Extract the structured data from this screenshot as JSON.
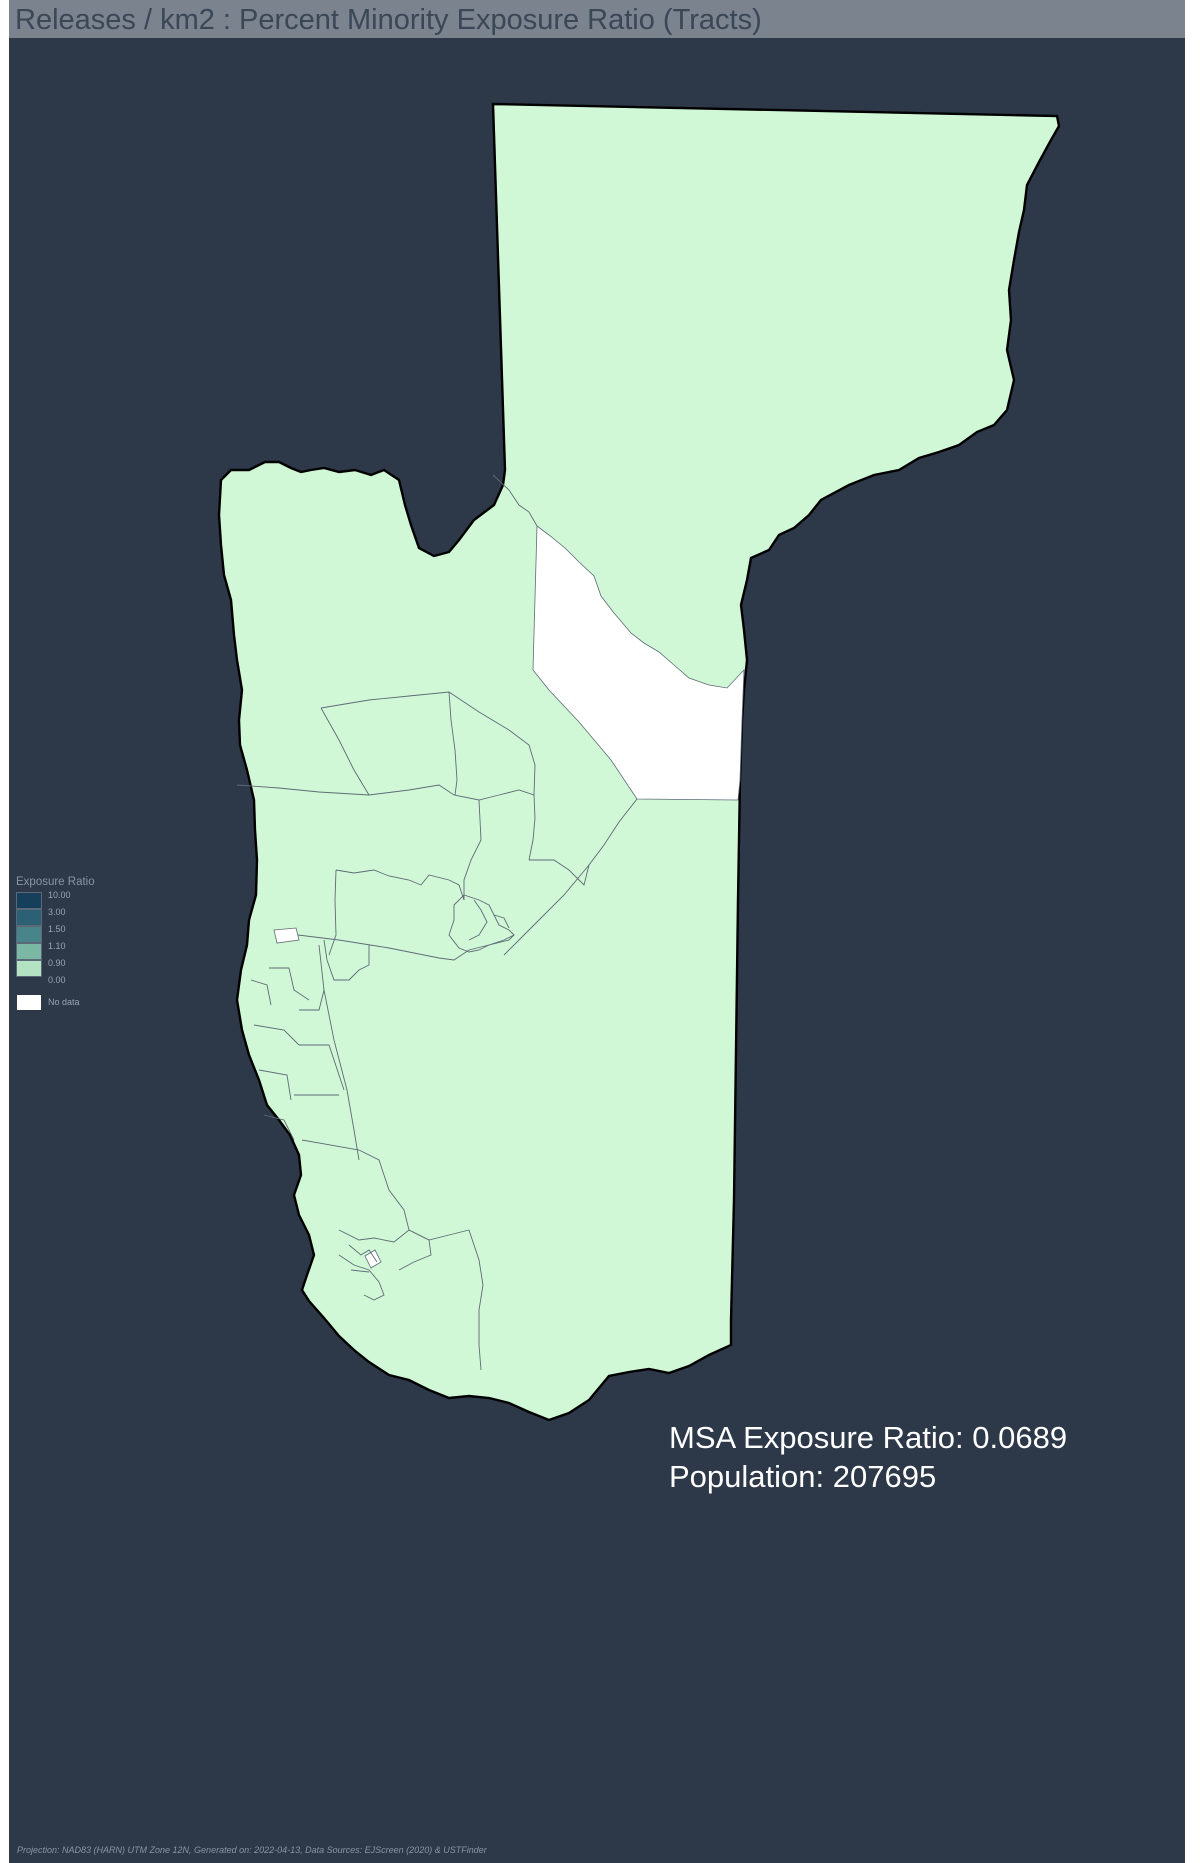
{
  "title": "Releases / km2 : Percent Minority Exposure Ratio (Tracts)",
  "colors": {
    "background": "#2d3848",
    "title_bar": "#7a838e",
    "title_text": "#3b4656",
    "tract_fill": "#d0f8d6",
    "no_data_fill": "#ffffff",
    "boundary": "#000000",
    "tract_line": "#5f6a76"
  },
  "legend": {
    "title": "Exposure Ratio",
    "classes": [
      {
        "label": "10.00",
        "color": "#163f5c"
      },
      {
        "label": "3.00",
        "color": "#2b6075"
      },
      {
        "label": "1.50",
        "color": "#48858a"
      },
      {
        "label": "1.10",
        "color": "#7ab8a4"
      },
      {
        "label": "0.90",
        "color": "#b3e3c2"
      },
      {
        "label": "0.00",
        "color": "#d0f8d6"
      }
    ],
    "no_data": {
      "label": "No data",
      "color": "#ffffff"
    }
  },
  "stats": {
    "exposure_line": "MSA Exposure Ratio: 0.0689",
    "population_line": "Population: 207695"
  },
  "footer": "Projection: NAD83 (HARN) UTM Zone 12N, Generated on: 2022-04-13, Data Sources: EJScreen (2020) & USTFinder"
}
